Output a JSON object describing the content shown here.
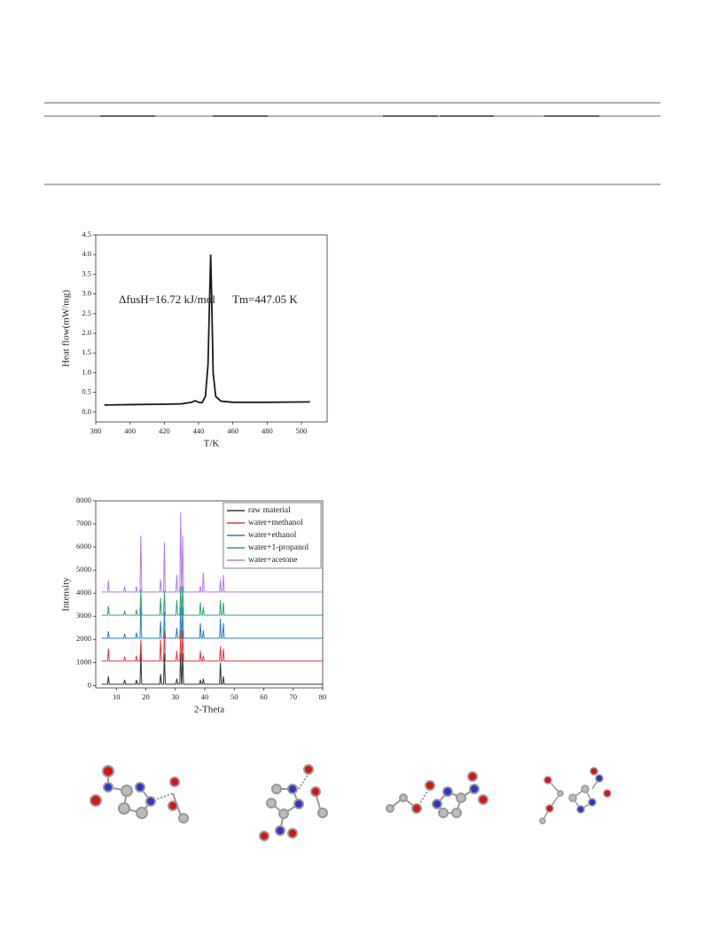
{
  "chart_data": [
    {
      "type": "line",
      "x_label": "T/K",
      "y_label": "Heat flow(mW/mg)",
      "annotations": [
        "ΔfusH=16.72 kJ/mol",
        "Tm=447.05 K"
      ],
      "x": [
        385,
        400,
        420,
        430,
        436,
        438,
        440,
        442,
        444,
        445.5,
        446.5,
        447.05,
        447.6,
        448.5,
        450,
        453,
        460,
        480,
        505
      ],
      "values": [
        0.18,
        0.19,
        0.2,
        0.21,
        0.25,
        0.29,
        0.25,
        0.24,
        0.4,
        1.2,
        3.0,
        4.0,
        3.0,
        1.0,
        0.4,
        0.28,
        0.25,
        0.25,
        0.26
      ],
      "color": "#1a1a1a",
      "xlim": [
        380,
        515
      ],
      "xticks": [
        380,
        400,
        420,
        440,
        460,
        480,
        500
      ],
      "ylim": [
        -0.25,
        4.5
      ],
      "yticks": [
        {
          "value": 0,
          "label": "0.0"
        },
        {
          "value": 0.5,
          "label": "0.5"
        },
        {
          "value": 1,
          "label": "1.0"
        },
        {
          "value": 1.5,
          "label": "1.5"
        },
        {
          "value": 2,
          "label": "2.0"
        },
        {
          "value": 2.5,
          "label": "2.5"
        },
        {
          "value": 3,
          "label": "3.0"
        },
        {
          "value": 3.5,
          "label": "3.5"
        },
        {
          "value": 4,
          "label": "4.0"
        },
        {
          "value": 4.5,
          "label": "4.5"
        }
      ]
    },
    {
      "type": "line",
      "x_label": "2-Theta",
      "y_label": "Intensity",
      "x": [
        5,
        7.0,
        7.3,
        7.6,
        12.5,
        12.8,
        13.1,
        16.5,
        16.8,
        17.1,
        18.0,
        18.3,
        18.6,
        24.7,
        25,
        25.3,
        26.0,
        26.3,
        26.6,
        30.2,
        30.5,
        30.8,
        31.5,
        31.8,
        32.1,
        32.2,
        32.5,
        32.8,
        38.2,
        38.5,
        38.8,
        39.2,
        39.5,
        39.8,
        45.0,
        45.3,
        45.6,
        46.0,
        46.3,
        46.6,
        80
      ],
      "series": [
        {
          "name": "raw material",
          "color": "#333333",
          "values": [
            60,
            60,
            400,
            60,
            60,
            250,
            60,
            60,
            250,
            60,
            60,
            1400,
            60,
            60,
            500,
            60,
            60,
            1400,
            60,
            60,
            300,
            60,
            60,
            1400,
            60,
            60,
            1400,
            60,
            60,
            250,
            60,
            60,
            300,
            60,
            60,
            1000,
            60,
            60,
            400,
            60,
            60
          ]
        },
        {
          "name": "water+methanol",
          "color": "#e8393b",
          "values": [
            1060,
            1060,
            1600,
            1060,
            1060,
            1250,
            1060,
            1060,
            1300,
            1060,
            1060,
            2000,
            1060,
            1060,
            2000,
            1060,
            1060,
            2400,
            1060,
            1060,
            1500,
            1060,
            1060,
            2400,
            1060,
            1060,
            2400,
            1060,
            1060,
            1500,
            1060,
            1060,
            1300,
            1060,
            1060,
            1700,
            1060,
            1060,
            1600,
            1060,
            1060
          ]
        },
        {
          "name": "water+ethanol",
          "color": "#2a7fc4",
          "values": [
            2050,
            2050,
            2350,
            2050,
            2050,
            2250,
            2050,
            2050,
            2300,
            2050,
            2050,
            3400,
            2050,
            2050,
            2800,
            2050,
            2050,
            3200,
            2050,
            2050,
            2500,
            2050,
            2050,
            3400,
            2050,
            2050,
            3400,
            2050,
            2050,
            2700,
            2050,
            2050,
            2400,
            2050,
            2050,
            2900,
            2050,
            2050,
            2700,
            2050,
            2050
          ]
        },
        {
          "name": "water+1-propanol",
          "color": "#2fa56f",
          "values": [
            3050,
            3050,
            3450,
            3050,
            3050,
            3250,
            3050,
            3050,
            3300,
            3050,
            3050,
            4200,
            3050,
            3050,
            3800,
            3050,
            3050,
            4100,
            3050,
            3050,
            3700,
            3050,
            3050,
            4300,
            3050,
            3050,
            4300,
            3050,
            3050,
            3600,
            3050,
            3050,
            3400,
            3050,
            3050,
            3700,
            3050,
            3050,
            3600,
            3050,
            3050
          ]
        },
        {
          "name": "water+acetone",
          "color": "#b57be6",
          "values": [
            4050,
            4050,
            4550,
            4050,
            4050,
            4300,
            4050,
            4050,
            4300,
            4050,
            4050,
            6500,
            4050,
            4050,
            4600,
            4050,
            4050,
            6200,
            4050,
            4050,
            4800,
            4050,
            4050,
            7500,
            4050,
            4050,
            6500,
            4050,
            4050,
            4300,
            4050,
            4050,
            4900,
            4050,
            4050,
            4600,
            4050,
            4050,
            4800,
            4050,
            4050
          ]
        }
      ],
      "xlim": [
        3,
        80
      ],
      "xticks": [
        10,
        20,
        30,
        40,
        50,
        60,
        70,
        80
      ],
      "ylim": [
        -100,
        8000
      ],
      "yticks": [
        0,
        1000,
        2000,
        3000,
        4000,
        5000,
        6000,
        7000,
        8000
      ],
      "legend": "upper right"
    }
  ]
}
